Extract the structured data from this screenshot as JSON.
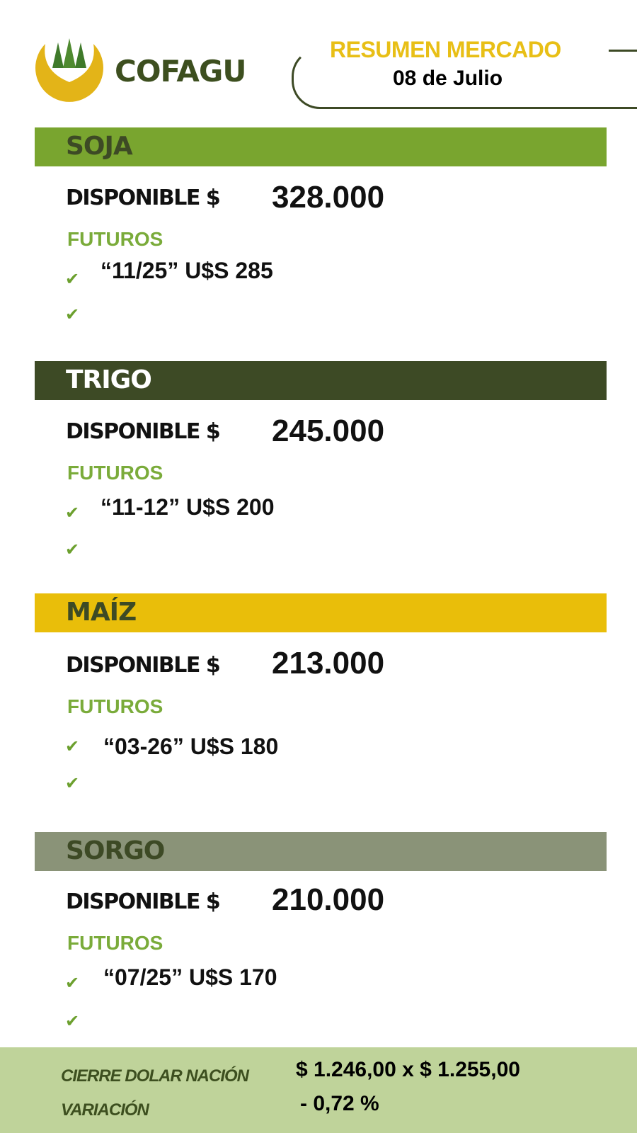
{
  "header": {
    "brand": "COFAGU",
    "title": "RESUMEN MERCADO",
    "date": "08 de Julio"
  },
  "colors": {
    "soja": "#79a52f",
    "trigo": "#3d4a25",
    "maiz": "#e9be0a",
    "sorgo": "#8a9378",
    "logo_yellow": "#e3b418",
    "accent_green": "#7aab3a"
  },
  "sections": [
    {
      "name": "SOJA",
      "disponible_label": "DISPONIBLE $",
      "disponible": "328.000",
      "futuros_label": "FUTUROS",
      "futuros": [
        "“11/25” U$S 285",
        ""
      ]
    },
    {
      "name": "TRIGO",
      "disponible_label": "DISPONIBLE $",
      "disponible": "245.000",
      "futuros_label": "FUTUROS",
      "futuros": [
        "“11-12” U$S 200",
        ""
      ]
    },
    {
      "name": "MAÍZ",
      "disponible_label": "DISPONIBLE $",
      "disponible": "213.000",
      "futuros_label": "FUTUROS",
      "futuros": [
        "“03-26” U$S 180",
        ""
      ]
    },
    {
      "name": "SORGO",
      "disponible_label": "DISPONIBLE $",
      "disponible": "210.000",
      "futuros_label": "FUTUROS",
      "futuros": [
        "“07/25” U$S 170",
        ""
      ]
    }
  ],
  "footer": {
    "dolar_label": "CIERRE DOLAR NACIÓN",
    "dolar_value": "$ 1.246,00 x $ 1.255,00",
    "variacion_label": "VARIACIÓN",
    "variacion_value": "- 0,72 %"
  }
}
